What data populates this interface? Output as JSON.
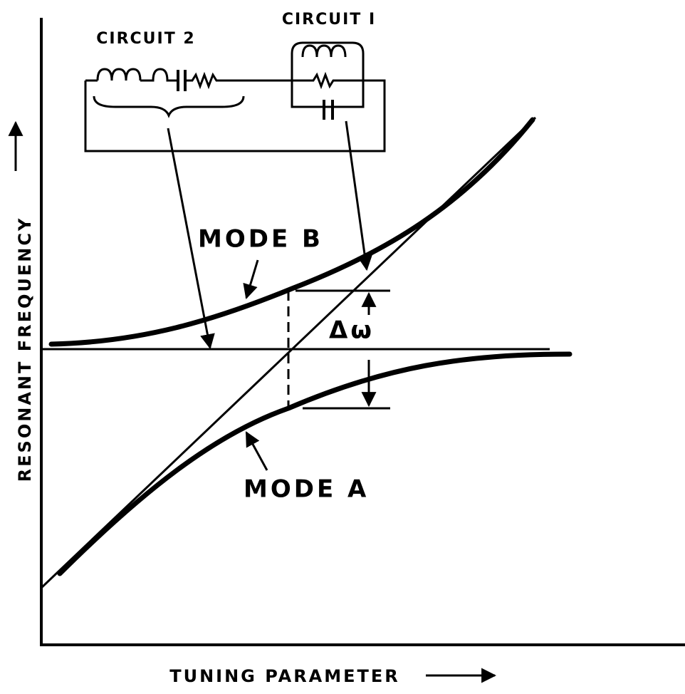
{
  "labels": {
    "circuit_2": "CIRCUIT 2",
    "circuit_1": "CIRCUIT I",
    "mode_b": "MODE B",
    "mode_a": "MODE A",
    "delta": "Δω"
  },
  "axes": {
    "x": "TUNING PARAMETER",
    "y": "RESONANT FREQUENCY"
  }
}
